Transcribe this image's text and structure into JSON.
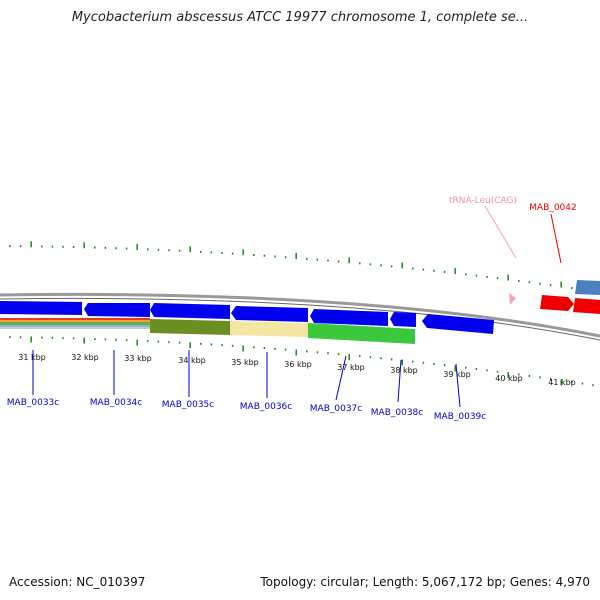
{
  "title": "Mycobacterium abscessus ATCC 19977 chromosome 1, complete se...",
  "footer": {
    "accession": "Accession: NC_010397",
    "stats": "Topology: circular; Length: 5,067,172 bp; Genes: 4,970"
  },
  "kbp_labels": [
    "31 kbp",
    "32 kbp",
    "33 kbp",
    "34 kbp",
    "35 kbp",
    "36 kbp",
    "37 kbp",
    "38 kbp",
    "39 kbp",
    "40 kbp",
    "41 kbp"
  ],
  "gene_labels": [
    {
      "name": "MAB_0033c",
      "color": "#0000cc"
    },
    {
      "name": "MAB_0034c",
      "color": "#0000cc"
    },
    {
      "name": "MAB_0035c",
      "color": "#0000cc"
    },
    {
      "name": "MAB_0036c",
      "color": "#0000cc"
    },
    {
      "name": "MAB_0037c",
      "color": "#0000cc"
    },
    {
      "name": "MAB_0038c",
      "color": "#0000cc"
    },
    {
      "name": "MAB_0039c",
      "color": "#0000cc"
    },
    {
      "name": "MAB_0042",
      "color": "#ee0000"
    },
    {
      "name": "tRNA-Leu(CAG)",
      "color": "#f28fb9"
    }
  ],
  "colors": {
    "minus_gene": "#0000ee",
    "plus_gene": "#ee0000",
    "backbone": "#888888",
    "tick": "#1a8a1a",
    "trna": "#f5a0c8",
    "plus_gene_light": "#4a7fc0"
  }
}
